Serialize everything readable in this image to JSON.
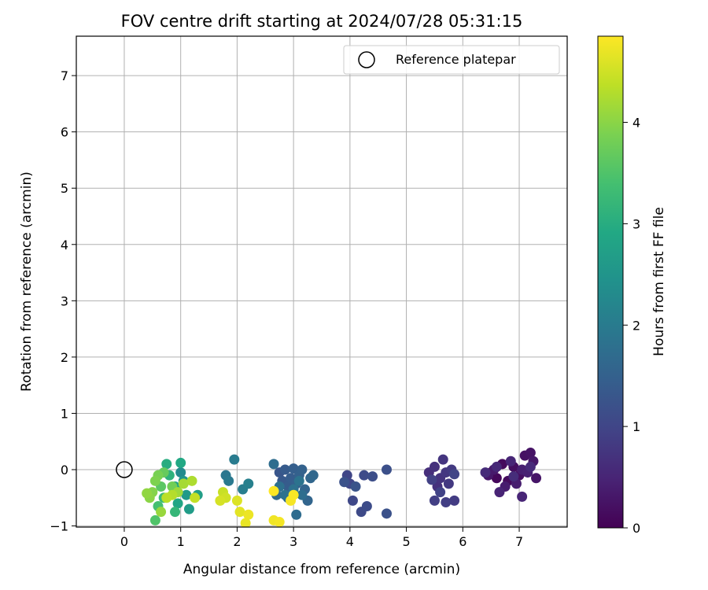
{
  "chart_data": {
    "type": "scatter",
    "title": "FOV centre drift starting at 2024/07/28 05:31:15",
    "xlabel": "Angular distance from reference (arcmin)",
    "ylabel": "Rotation from reference (arcmin)",
    "xlim": [
      -0.85,
      7.85
    ],
    "ylim": [
      -1.02,
      7.7
    ],
    "xticks": [
      0,
      1,
      2,
      3,
      4,
      5,
      6,
      7
    ],
    "yticks": [
      -1,
      0,
      1,
      2,
      3,
      4,
      5,
      6,
      7
    ],
    "grid": true,
    "legend": {
      "entries": [
        "Reference platepar"
      ],
      "placement": "top-right"
    },
    "reference_point": {
      "label": "Reference platepar",
      "x": 0,
      "y": 0,
      "marker": "open-circle"
    },
    "colorbar": {
      "label": "Hours from first FF file",
      "colormap": "viridis",
      "range": [
        0,
        4.85
      ],
      "ticks": [
        0,
        1,
        2,
        3,
        4
      ]
    },
    "series": [
      {
        "color_field": "hours",
        "points": [
          [
            6.5,
            -0.05,
            0.05
          ],
          [
            6.6,
            -0.15,
            0.1
          ],
          [
            6.7,
            0.1,
            0.12
          ],
          [
            6.8,
            -0.2,
            0.15
          ],
          [
            6.9,
            0.05,
            0.18
          ],
          [
            7.0,
            -0.1,
            0.2
          ],
          [
            7.1,
            0.25,
            0.22
          ],
          [
            7.2,
            0.3,
            0.25
          ],
          [
            7.3,
            -0.15,
            0.28
          ],
          [
            7.25,
            0.15,
            0.3
          ],
          [
            6.45,
            -0.1,
            0.32
          ],
          [
            6.55,
            0.0,
            0.35
          ],
          [
            6.75,
            -0.3,
            0.38
          ],
          [
            6.95,
            -0.25,
            0.4
          ],
          [
            7.05,
            0.0,
            0.42
          ],
          [
            7.15,
            -0.05,
            0.45
          ],
          [
            6.65,
            -0.4,
            0.48
          ],
          [
            7.05,
            -0.48,
            0.5
          ],
          [
            6.85,
            0.15,
            0.52
          ],
          [
            6.6,
            0.05,
            0.55
          ],
          [
            7.2,
            0.05,
            0.58
          ],
          [
            6.4,
            -0.05,
            0.6
          ],
          [
            6.9,
            -0.12,
            0.62
          ],
          [
            5.4,
            -0.05,
            0.65
          ],
          [
            5.5,
            0.05,
            0.68
          ],
          [
            5.55,
            -0.3,
            0.7
          ],
          [
            5.6,
            -0.15,
            0.72
          ],
          [
            5.65,
            0.18,
            0.75
          ],
          [
            5.7,
            -0.05,
            0.78
          ],
          [
            5.75,
            -0.25,
            0.8
          ],
          [
            5.8,
            0.0,
            0.82
          ],
          [
            5.85,
            -0.55,
            0.85
          ],
          [
            5.7,
            -0.58,
            0.88
          ],
          [
            5.5,
            -0.55,
            0.9
          ],
          [
            5.45,
            -0.18,
            0.92
          ],
          [
            5.6,
            -0.4,
            0.95
          ],
          [
            5.85,
            -0.08,
            0.98
          ],
          [
            3.95,
            -0.1,
            1.0
          ],
          [
            4.0,
            -0.25,
            1.02
          ],
          [
            4.05,
            -0.55,
            1.05
          ],
          [
            4.2,
            -0.75,
            1.08
          ],
          [
            4.25,
            -0.1,
            1.1
          ],
          [
            4.3,
            -0.65,
            1.12
          ],
          [
            4.4,
            -0.12,
            1.15
          ],
          [
            4.65,
            0.0,
            1.18
          ],
          [
            4.65,
            -0.78,
            1.2
          ],
          [
            3.9,
            -0.22,
            1.22
          ],
          [
            4.1,
            -0.3,
            1.25
          ],
          [
            2.75,
            -0.05,
            1.3
          ],
          [
            2.8,
            -0.2,
            1.35
          ],
          [
            2.85,
            0.0,
            1.38
          ],
          [
            2.9,
            -0.3,
            1.4
          ],
          [
            2.95,
            -0.15,
            1.42
          ],
          [
            3.0,
            0.02,
            1.45
          ],
          [
            3.05,
            -0.25,
            1.48
          ],
          [
            3.1,
            -0.1,
            1.5
          ],
          [
            3.15,
            0.0,
            1.52
          ],
          [
            3.2,
            -0.35,
            1.55
          ],
          [
            3.25,
            -0.55,
            1.58
          ],
          [
            3.3,
            -0.15,
            1.6
          ],
          [
            3.35,
            -0.1,
            1.62
          ],
          [
            2.7,
            -0.45,
            1.65
          ],
          [
            2.9,
            -0.5,
            1.68
          ],
          [
            3.05,
            -0.8,
            1.7
          ],
          [
            2.65,
            0.1,
            1.72
          ],
          [
            3.15,
            -0.45,
            1.75
          ],
          [
            2.75,
            -0.3,
            1.78
          ],
          [
            3.0,
            -0.35,
            1.8
          ],
          [
            2.85,
            -0.45,
            1.82
          ],
          [
            3.1,
            -0.2,
            1.85
          ],
          [
            1.8,
            -0.1,
            1.9
          ],
          [
            1.85,
            -0.2,
            1.95
          ],
          [
            1.95,
            0.18,
            2.0
          ],
          [
            2.1,
            -0.35,
            2.05
          ],
          [
            2.2,
            -0.25,
            2.1
          ],
          [
            1.0,
            -0.05,
            2.3
          ],
          [
            1.05,
            -0.2,
            2.5
          ],
          [
            1.1,
            -0.45,
            2.6
          ],
          [
            1.15,
            -0.7,
            2.65
          ],
          [
            1.3,
            -0.45,
            2.7
          ],
          [
            0.9,
            -0.3,
            2.8
          ],
          [
            0.95,
            -0.6,
            2.85
          ],
          [
            1.0,
            0.12,
            2.9
          ],
          [
            0.75,
            0.1,
            3.0
          ],
          [
            0.8,
            -0.1,
            3.1
          ],
          [
            0.9,
            -0.75,
            3.2
          ],
          [
            0.7,
            -0.5,
            3.3
          ],
          [
            0.6,
            -0.65,
            3.4
          ],
          [
            0.55,
            -0.9,
            3.5
          ],
          [
            0.65,
            -0.3,
            3.6
          ],
          [
            0.7,
            -0.05,
            3.7
          ],
          [
            0.85,
            -0.3,
            3.8
          ],
          [
            0.6,
            -0.1,
            3.85
          ],
          [
            0.55,
            -0.2,
            3.9
          ],
          [
            0.5,
            -0.4,
            3.95
          ],
          [
            0.45,
            -0.5,
            4.0
          ],
          [
            0.4,
            -0.42,
            4.05
          ],
          [
            0.65,
            -0.75,
            4.1
          ],
          [
            0.95,
            -0.4,
            4.15
          ],
          [
            1.05,
            -0.25,
            4.2
          ],
          [
            1.2,
            -0.2,
            4.25
          ],
          [
            0.85,
            -0.45,
            4.3
          ],
          [
            0.75,
            -0.5,
            4.35
          ],
          [
            1.25,
            -0.5,
            4.4
          ],
          [
            1.75,
            -0.4,
            4.45
          ],
          [
            1.8,
            -0.5,
            4.5
          ],
          [
            1.7,
            -0.55,
            4.55
          ],
          [
            2.0,
            -0.55,
            4.6
          ],
          [
            2.05,
            -0.75,
            4.65
          ],
          [
            2.15,
            -0.95,
            4.7
          ],
          [
            2.2,
            -0.8,
            4.72
          ],
          [
            2.65,
            -0.9,
            4.75
          ],
          [
            2.75,
            -0.93,
            4.78
          ],
          [
            2.95,
            -0.55,
            4.8
          ],
          [
            3.0,
            -0.45,
            4.82
          ],
          [
            2.65,
            -0.38,
            4.85
          ]
        ]
      }
    ]
  }
}
